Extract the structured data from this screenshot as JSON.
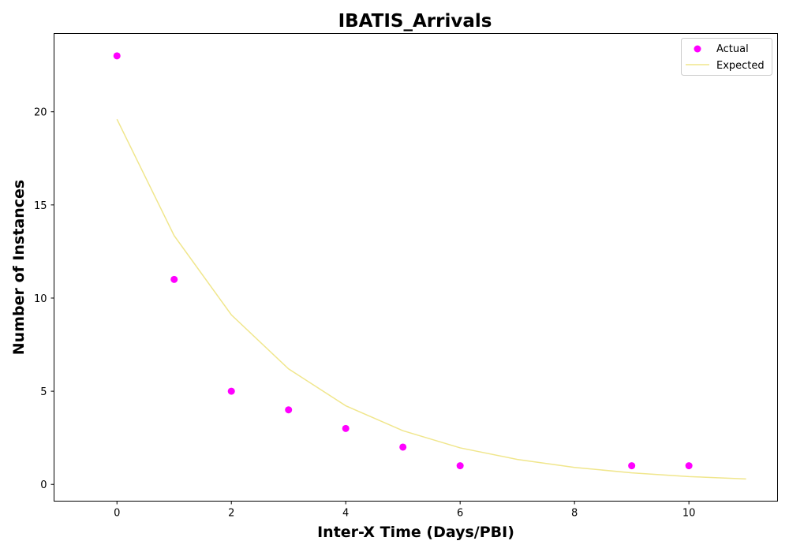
{
  "chart_data": {
    "type": "scatter",
    "title": "IBATIS_Arrivals",
    "xlabel": "Inter-X Time (Days/PBI)",
    "ylabel": "Number of Instances",
    "xlim": [
      -1.1,
      11.55
    ],
    "ylim": [
      -0.9,
      24.2
    ],
    "xticks": [
      0,
      2,
      4,
      6,
      8,
      10
    ],
    "yticks": [
      0,
      5,
      10,
      15,
      20
    ],
    "grid": false,
    "legend_position": "top-right",
    "series": [
      {
        "name": "Actual",
        "kind": "scatter",
        "color": "#ff00ff",
        "x": [
          0,
          1,
          2,
          3,
          4,
          5,
          6,
          9,
          10
        ],
        "y": [
          23,
          11,
          5,
          4,
          3,
          2,
          1,
          1,
          1
        ]
      },
      {
        "name": "Expected",
        "kind": "line",
        "color": "#f0e68c",
        "x": [
          0,
          1,
          2,
          3,
          4,
          5,
          6,
          7,
          8,
          9,
          10,
          11
        ],
        "y": [
          19.6,
          13.35,
          9.1,
          6.2,
          4.22,
          2.88,
          1.96,
          1.34,
          0.91,
          0.62,
          0.42,
          0.29
        ]
      }
    ]
  }
}
